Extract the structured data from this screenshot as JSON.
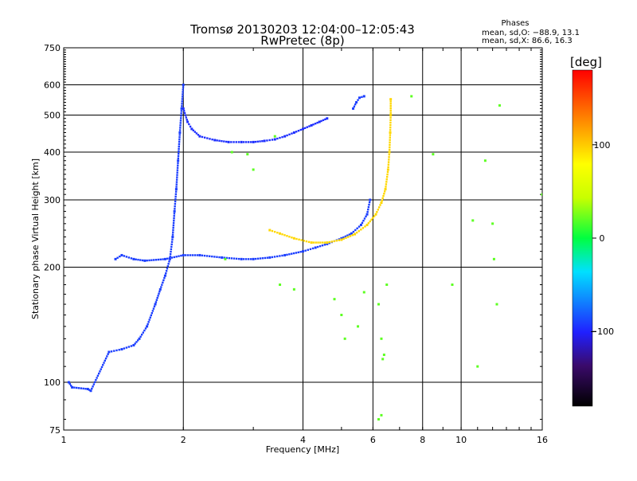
{
  "header": {
    "title_line1": "Tromsø 20130203 12:04:00–12:05:43",
    "title_line2": "RwPretec (8p)",
    "stats_title": "Phases",
    "stats_o": "mean, sd,O: −88.9, 13.1",
    "stats_x": "mean, sd,X:  86.6, 16.3"
  },
  "colorbar": {
    "label": "[deg]",
    "ticks": [
      "100",
      "0",
      "−100"
    ],
    "tick_values": [
      100,
      0,
      -100
    ],
    "range": [
      -180,
      180
    ]
  },
  "chart_data": {
    "type": "scatter",
    "title": "Tromsø 20130203 12:04:00–12:05:43",
    "subtitle": "RwPretec (8p)",
    "xlabel": "Frequency [MHz]",
    "ylabel": "Stationary phase Virtual Height [km]",
    "xscale": "log",
    "yscale": "log",
    "xlim": [
      1,
      16
    ],
    "ylim": [
      75,
      750
    ],
    "xticks": [
      1,
      2,
      4,
      6,
      8,
      10,
      16
    ],
    "xticklabels": [
      "1",
      "2",
      "4",
      "6",
      "8",
      "10",
      "16"
    ],
    "yticks": [
      75,
      100,
      200,
      300,
      400,
      500,
      600,
      750
    ],
    "yticklabels": [
      "75",
      "100",
      "200",
      "300",
      "400",
      "500",
      "600",
      "750"
    ],
    "grid": true,
    "legend": "colorbar right (phase, deg)",
    "series": [
      {
        "color_phase": -90,
        "points": [
          [
            1.03,
            100
          ],
          [
            1.05,
            97
          ],
          [
            1.15,
            96
          ],
          [
            1.17,
            95
          ],
          [
            1.3,
            120
          ],
          [
            1.4,
            122
          ],
          [
            1.5,
            125
          ],
          [
            1.55,
            130
          ],
          [
            1.62,
            140
          ],
          [
            1.7,
            160
          ],
          [
            1.75,
            175
          ],
          [
            1.8,
            190
          ],
          [
            1.85,
            210
          ],
          [
            1.88,
            240
          ],
          [
            1.9,
            280
          ],
          [
            1.92,
            320
          ],
          [
            1.94,
            380
          ],
          [
            1.96,
            450
          ],
          [
            1.98,
            520
          ],
          [
            2.0,
            600
          ]
        ]
      },
      {
        "color_phase": -90,
        "points": [
          [
            1.35,
            210
          ],
          [
            1.4,
            215
          ],
          [
            1.5,
            210
          ],
          [
            1.6,
            208
          ],
          [
            1.8,
            210
          ],
          [
            2.0,
            215
          ],
          [
            2.2,
            215
          ],
          [
            2.5,
            212
          ],
          [
            2.8,
            210
          ],
          [
            3.0,
            210
          ],
          [
            3.3,
            212
          ],
          [
            3.6,
            215
          ],
          [
            4.0,
            220
          ],
          [
            4.3,
            225
          ],
          [
            4.6,
            230
          ],
          [
            5.0,
            238
          ],
          [
            5.3,
            245
          ],
          [
            5.6,
            258
          ],
          [
            5.8,
            275
          ],
          [
            5.9,
            300
          ]
        ]
      },
      {
        "color_phase": -95,
        "points": [
          [
            2.0,
            520
          ],
          [
            2.05,
            480
          ],
          [
            2.1,
            460
          ],
          [
            2.2,
            440
          ],
          [
            2.4,
            430
          ],
          [
            2.6,
            425
          ],
          [
            2.8,
            425
          ],
          [
            3.0,
            425
          ],
          [
            3.2,
            428
          ],
          [
            3.4,
            432
          ],
          [
            3.6,
            440
          ],
          [
            3.8,
            450
          ],
          [
            4.0,
            460
          ],
          [
            4.2,
            470
          ],
          [
            4.4,
            480
          ],
          [
            4.6,
            490
          ]
        ]
      },
      {
        "color_phase": 95,
        "points": [
          [
            3.3,
            250
          ],
          [
            3.5,
            245
          ],
          [
            3.8,
            238
          ],
          [
            4.2,
            232
          ],
          [
            4.6,
            232
          ],
          [
            5.0,
            236
          ],
          [
            5.4,
            244
          ],
          [
            5.8,
            258
          ],
          [
            6.1,
            275
          ],
          [
            6.3,
            295
          ],
          [
            6.45,
            320
          ],
          [
            6.55,
            360
          ],
          [
            6.6,
            400
          ],
          [
            6.63,
            450
          ],
          [
            6.65,
            500
          ],
          [
            6.65,
            550
          ]
        ]
      },
      {
        "color_phase": -90,
        "points": [
          [
            5.35,
            520
          ],
          [
            5.45,
            540
          ],
          [
            5.55,
            555
          ],
          [
            5.7,
            560
          ]
        ]
      },
      {
        "color_phase": 20,
        "points": [
          [
            3.0,
            360
          ],
          [
            3.4,
            440
          ],
          [
            3.5,
            180
          ],
          [
            3.8,
            175
          ],
          [
            4.8,
            165
          ],
          [
            5.0,
            150
          ],
          [
            5.1,
            130
          ],
          [
            5.5,
            140
          ],
          [
            5.7,
            172
          ],
          [
            6.2,
            160
          ],
          [
            6.3,
            130
          ],
          [
            6.35,
            115
          ],
          [
            6.4,
            118
          ],
          [
            6.5,
            180
          ],
          [
            7.5,
            560
          ],
          [
            8.5,
            395
          ],
          [
            9.5,
            180
          ],
          [
            10.7,
            265
          ],
          [
            11.0,
            110
          ],
          [
            11.5,
            380
          ],
          [
            12.0,
            260
          ],
          [
            12.1,
            210
          ],
          [
            12.3,
            160
          ],
          [
            12.5,
            530
          ],
          [
            16.0,
            310
          ],
          [
            6.2,
            80
          ],
          [
            6.3,
            82
          ],
          [
            2.9,
            395
          ],
          [
            2.55,
            210
          ],
          [
            2.65,
            400
          ]
        ]
      }
    ]
  }
}
